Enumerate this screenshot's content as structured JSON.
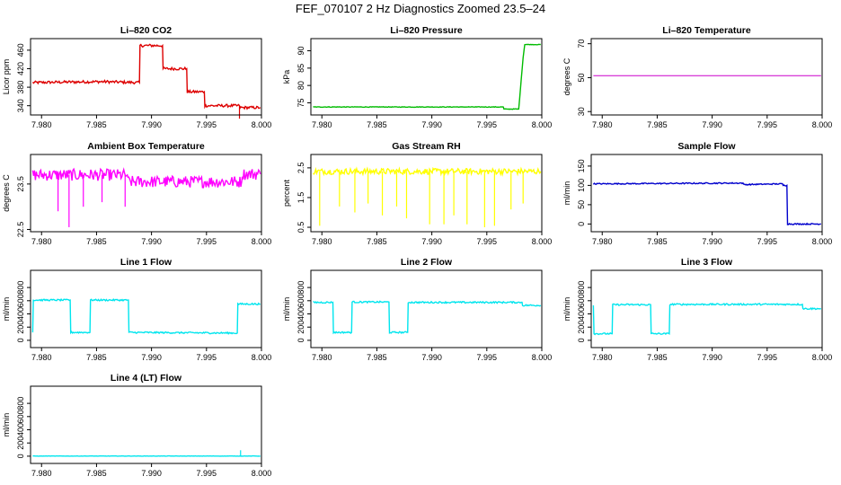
{
  "title": "FEF_070107  2 Hz Diagnostics Zoomed 23.5–24",
  "chart_data": [
    {
      "type": "line",
      "title": "Li–820 CO2",
      "ylabel": "Licor ppm",
      "color": "#dd0000",
      "xlim": [
        7.979,
        8.0
      ],
      "ylim": [
        320,
        485
      ],
      "xticks": [
        "7.980",
        "7.985",
        "7.990",
        "7.995",
        "8.000"
      ],
      "yticks": [
        340,
        380,
        420,
        460
      ],
      "x": [
        7.9792,
        7.982,
        7.9855,
        7.9889,
        7.98895,
        7.991,
        7.99105,
        7.9932,
        7.99325,
        7.9948,
        7.99485,
        7.998,
        7.99805,
        7.9999
      ],
      "y": [
        390,
        391,
        392,
        390,
        470,
        470,
        420,
        420,
        370,
        370,
        340,
        340,
        336,
        336
      ],
      "noise": 3,
      "spikes": [
        [
          7.998,
          312
        ]
      ]
    },
    {
      "type": "line",
      "title": "Li–820 Pressure",
      "ylabel": "kPa",
      "color": "#00bb00",
      "xlim": [
        7.979,
        8.0
      ],
      "ylim": [
        71.5,
        93.5
      ],
      "xticks": [
        "7.980",
        "7.985",
        "7.990",
        "7.995",
        "8.000"
      ],
      "yticks": [
        75,
        80,
        85,
        90
      ],
      "x": [
        7.9792,
        7.9965,
        7.99655,
        7.9979,
        7.9983,
        7.99845,
        7.9999
      ],
      "y": [
        73.8,
        73.8,
        73.2,
        73.2,
        88,
        91.8,
        91.8
      ],
      "noise": 0.08,
      "spikes": []
    },
    {
      "type": "line",
      "title": "Li–820 Temperature",
      "ylabel": "degrees C",
      "color": "#cc00cc",
      "xlim": [
        7.979,
        8.0
      ],
      "ylim": [
        28,
        73
      ],
      "xticks": [
        "7.980",
        "7.985",
        "7.990",
        "7.995",
        "8.000"
      ],
      "yticks": [
        30,
        50,
        70
      ],
      "x": [
        7.9792,
        7.9999
      ],
      "y": [
        51.2,
        51.2
      ],
      "noise": 0,
      "spikes": []
    },
    {
      "type": "line",
      "title": "Ambient Box Temperature",
      "ylabel": "degrees C",
      "color": "#ff00ff",
      "xlim": [
        7.979,
        8.0
      ],
      "ylim": [
        22.45,
        24.15
      ],
      "xticks": [
        "7.980",
        "7.985",
        "7.990",
        "7.995",
        "8.000"
      ],
      "yticks": [
        22.5,
        23.5
      ],
      "x": [
        7.9792,
        7.9878,
        7.98785,
        7.9982,
        7.99825,
        7.9999
      ],
      "y": [
        23.7,
        23.7,
        23.55,
        23.55,
        23.72,
        23.72
      ],
      "noise": 0.13,
      "spikes": [
        [
          7.9815,
          22.9
        ],
        [
          7.9825,
          22.55
        ],
        [
          7.9838,
          23.0
        ],
        [
          7.9855,
          23.1
        ],
        [
          7.9876,
          23.0
        ]
      ]
    },
    {
      "type": "line",
      "title": "Gas Stream RH",
      "ylabel": "percent",
      "color": "#ffff00",
      "xlim": [
        7.979,
        8.0
      ],
      "ylim": [
        0.35,
        2.95
      ],
      "xticks": [
        "7.980",
        "7.985",
        "7.990",
        "7.995",
        "8.000"
      ],
      "yticks": [
        0.5,
        1.5,
        2.5
      ],
      "x": [
        7.9792,
        7.9999
      ],
      "y": [
        2.38,
        2.38
      ],
      "noise": 0.1,
      "spikes": [
        [
          7.9798,
          0.55
        ],
        [
          7.9816,
          1.2
        ],
        [
          7.983,
          1.0
        ],
        [
          7.9842,
          1.3
        ],
        [
          7.9855,
          0.9
        ],
        [
          7.9868,
          1.2
        ],
        [
          7.9877,
          0.8
        ],
        [
          7.9898,
          0.6
        ],
        [
          7.9911,
          0.6
        ],
        [
          7.992,
          0.9
        ],
        [
          7.9932,
          0.6
        ],
        [
          7.9948,
          0.5
        ],
        [
          7.9957,
          0.55
        ],
        [
          7.9972,
          1.1
        ],
        [
          7.9983,
          1.3
        ]
      ]
    },
    {
      "type": "line",
      "title": "Sample Flow",
      "ylabel": "ml/min",
      "color": "#0000cc",
      "xlim": [
        7.979,
        8.0
      ],
      "ylim": [
        -20,
        180
      ],
      "xticks": [
        "7.980",
        "7.985",
        "7.990",
        "7.995",
        "8.000"
      ],
      "yticks": [
        0,
        50,
        100,
        150
      ],
      "x": [
        7.9792,
        7.9928,
        7.99285,
        7.9964,
        7.99645,
        7.9968,
        7.99685,
        7.9999
      ],
      "y": [
        104,
        106,
        102,
        104,
        100,
        100,
        0,
        0
      ],
      "noise": 1.5,
      "spikes": []
    },
    {
      "type": "line",
      "title": "Line 1 Flow",
      "ylabel": "ml/min",
      "color": "#00e5ee",
      "xlim": [
        7.979,
        8.0
      ],
      "ylim": [
        -110,
        1060
      ],
      "xticks": [
        "7.980",
        "7.985",
        "7.990",
        "7.995",
        "8.000"
      ],
      "yticks": [
        0,
        200,
        400,
        600,
        800
      ],
      "x": [
        7.9792,
        7.97925,
        7.9826,
        7.98265,
        7.9844,
        7.98445,
        7.9879,
        7.98795,
        7.9978,
        7.99785,
        7.9999
      ],
      "y": [
        120,
        610,
        610,
        120,
        120,
        610,
        610,
        120,
        110,
        550,
        550
      ],
      "noise": 12,
      "spikes": []
    },
    {
      "type": "line",
      "title": "Line 2 Flow",
      "ylabel": "ml/min",
      "color": "#00e5ee",
      "xlim": [
        7.979,
        8.0
      ],
      "ylim": [
        -110,
        1060
      ],
      "xticks": [
        "7.980",
        "7.985",
        "7.990",
        "7.995",
        "8.000"
      ],
      "yticks": [
        0,
        200,
        400,
        600,
        800
      ],
      "x": [
        7.9792,
        7.981,
        7.98105,
        7.9827,
        7.98275,
        7.9861,
        7.98615,
        7.9878,
        7.98785,
        7.9982,
        7.99825,
        7.9999
      ],
      "y": [
        575,
        575,
        120,
        120,
        580,
        580,
        120,
        120,
        575,
        575,
        530,
        530
      ],
      "noise": 12,
      "spikes": []
    },
    {
      "type": "line",
      "title": "Line 3 Flow",
      "ylabel": "ml/min",
      "color": "#00e5ee",
      "xlim": [
        7.979,
        8.0
      ],
      "ylim": [
        -110,
        1060
      ],
      "xticks": [
        "7.980",
        "7.985",
        "7.990",
        "7.995",
        "8.000"
      ],
      "yticks": [
        0,
        200,
        400,
        600,
        800
      ],
      "x": [
        7.9792,
        7.97925,
        7.9809,
        7.98095,
        7.9844,
        7.98445,
        7.9861,
        7.98615,
        7.9982,
        7.99825,
        7.9999
      ],
      "y": [
        530,
        100,
        100,
        540,
        540,
        100,
        100,
        545,
        545,
        480,
        480
      ],
      "noise": 12,
      "spikes": []
    },
    {
      "type": "line",
      "title": "Line 4 (LT) Flow",
      "ylabel": "ml/min",
      "color": "#00e5ee",
      "xlim": [
        7.979,
        8.0
      ],
      "ylim": [
        -110,
        1060
      ],
      "xticks": [
        "7.980",
        "7.985",
        "7.990",
        "7.995",
        "8.000"
      ],
      "yticks": [
        0,
        200,
        400,
        600,
        800
      ],
      "x": [
        7.9792,
        7.9999
      ],
      "y": [
        2,
        2
      ],
      "noise": 2,
      "spikes": [
        [
          7.9981,
          90
        ]
      ]
    }
  ]
}
